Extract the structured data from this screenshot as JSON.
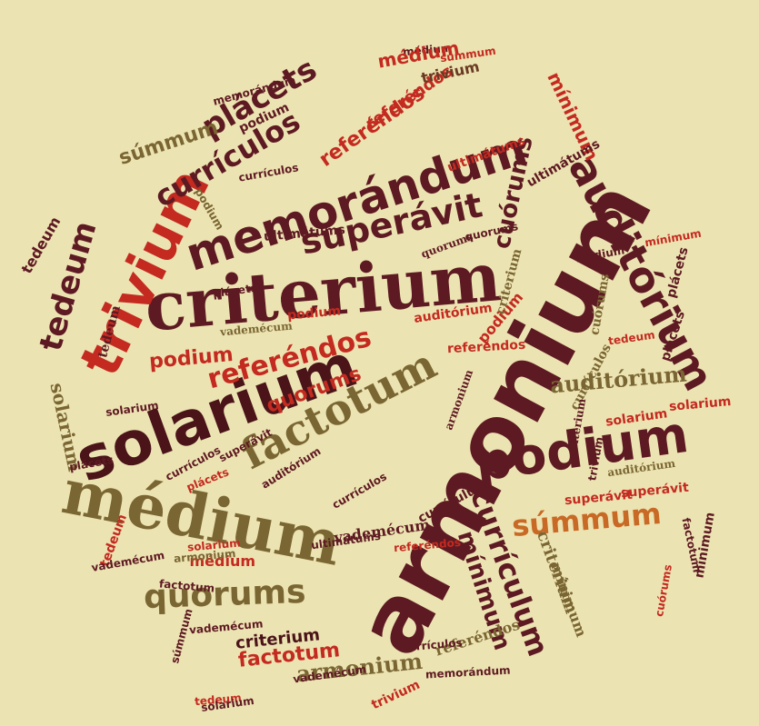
{
  "palette": {
    "background": "#ece3b2",
    "maroon": "#5e1a22",
    "dark_maroon": "#4a1419",
    "red": "#c42a20",
    "olive": "#7a6633",
    "khaki": "#8e7a45",
    "orange": "#c86a25",
    "brown": "#6b3a24"
  },
  "words": [
    {
      "text": "criterium"
    },
    {
      "text": "armonium"
    },
    {
      "text": "solarium"
    },
    {
      "text": "médium"
    },
    {
      "text": "trivium"
    },
    {
      "text": "memorándum"
    },
    {
      "text": "auditórium"
    },
    {
      "text": "podium"
    },
    {
      "text": "factotum"
    },
    {
      "text": "quorums"
    },
    {
      "text": "superávit"
    },
    {
      "text": "referéndos"
    },
    {
      "text": "currículum"
    },
    {
      "text": "mínimum"
    },
    {
      "text": "súmmum"
    },
    {
      "text": "tedeum"
    },
    {
      "text": "plácets"
    },
    {
      "text": "currículos"
    },
    {
      "text": "cuórums"
    },
    {
      "text": "referéndos"
    },
    {
      "text": "quorums"
    },
    {
      "text": "auditórium"
    },
    {
      "text": "armonium"
    },
    {
      "text": "factotum"
    },
    {
      "text": "podium"
    },
    {
      "text": "criterium"
    },
    {
      "text": "súmmum"
    },
    {
      "text": "tedeum"
    },
    {
      "text": "solarium"
    },
    {
      "text": "referéndos"
    },
    {
      "text": "ultimátums"
    },
    {
      "text": "vademécum"
    },
    {
      "text": "podium"
    },
    {
      "text": "médium"
    },
    {
      "text": "trivium"
    },
    {
      "text": "podium"
    },
    {
      "text": "plácets"
    },
    {
      "text": "mínimum"
    },
    {
      "text": "médium"
    },
    {
      "text": "solarium"
    },
    {
      "text": "superávit"
    },
    {
      "text": "currículos"
    },
    {
      "text": "quorums"
    },
    {
      "text": "auditórium"
    },
    {
      "text": "vademécum"
    },
    {
      "text": "tedeum"
    },
    {
      "text": "superávit"
    },
    {
      "text": "plácets"
    },
    {
      "text": "auditórium"
    },
    {
      "text": "currículos"
    },
    {
      "text": "tedeum"
    },
    {
      "text": "factotum"
    },
    {
      "text": "memorándum"
    },
    {
      "text": "referéndos"
    },
    {
      "text": "criterium"
    },
    {
      "text": "mínimum"
    },
    {
      "text": "médium"
    },
    {
      "text": "súmmum"
    },
    {
      "text": "trivium"
    },
    {
      "text": "ultimátums"
    },
    {
      "text": "podium"
    },
    {
      "text": "cuórums"
    },
    {
      "text": "solarium"
    },
    {
      "text": "tedeum"
    },
    {
      "text": "vademécum"
    },
    {
      "text": "mínimum"
    },
    {
      "text": "criterium"
    },
    {
      "text": "currículum"
    },
    {
      "text": "referéndos"
    },
    {
      "text": "armonium"
    },
    {
      "text": "podium"
    },
    {
      "text": "superávit"
    },
    {
      "text": "ultimátums"
    },
    {
      "text": "currículos"
    },
    {
      "text": "solarium"
    },
    {
      "text": "currículos"
    },
    {
      "text": "mínimum"
    },
    {
      "text": "memorándum"
    },
    {
      "text": "plácets"
    },
    {
      "text": "auditórium"
    },
    {
      "text": "currículos"
    },
    {
      "text": "quorums"
    },
    {
      "text": "referéndos"
    },
    {
      "text": "tedeum"
    },
    {
      "text": "solarium"
    },
    {
      "text": "vademécum"
    },
    {
      "text": "armonium"
    },
    {
      "text": "plácets"
    },
    {
      "text": "cuórums"
    },
    {
      "text": "médium"
    },
    {
      "text": "criterium"
    },
    {
      "text": "trivium"
    },
    {
      "text": "plácets"
    },
    {
      "text": "ultimátums"
    },
    {
      "text": "vademécum"
    },
    {
      "text": "factotum"
    },
    {
      "text": "súmmum"
    },
    {
      "text": "solarium"
    }
  ]
}
